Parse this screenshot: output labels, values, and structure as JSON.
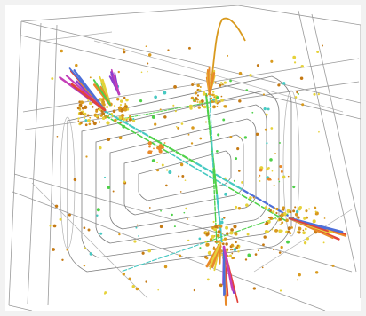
{
  "scene": {
    "description_free": true,
    "colors": {
      "frame_background": "#f2f2f2",
      "canvas_background": "#ffffff",
      "detector_wireframe": "#8a8a8a",
      "detector_wireframe_light": "#b5b5b5",
      "hit_primary": "#d99a1e",
      "hit_secondary": "#c57a14",
      "track_green": "#4fd14a",
      "track_cyan": "#46c9c2",
      "track_blue": "#4e6fd9",
      "track_purple": "#8a3fcf",
      "track_magenta": "#c43fb8",
      "track_red": "#e2433a",
      "track_yellow": "#e6d23a",
      "track_orange": "#e98a2a"
    },
    "icons": [
      "detector-barrel-icon",
      "particle-jet-icon"
    ]
  }
}
